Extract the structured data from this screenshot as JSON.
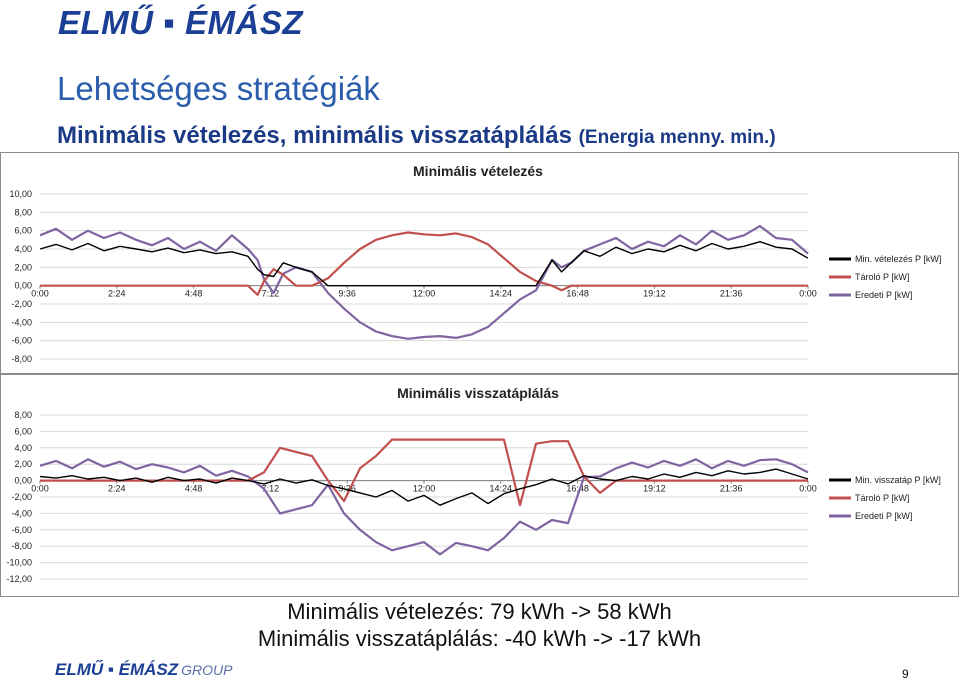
{
  "header": {
    "logo_text": "ELMŰ ▪ ÉMÁSZ",
    "title": "Lehetséges stratégiák",
    "subtitle_main": "Minimális vételezés, minimális visszatáplálás",
    "subtitle_note": "(Energia menny. min.)"
  },
  "colors": {
    "title": "#2a5dab",
    "black_series": "#000000",
    "red_series": "#c0504d",
    "purple_series": "#8064a2"
  },
  "chart_data": [
    {
      "type": "line",
      "title": "Minimális vételezés",
      "x_ticks": [
        "0:00",
        "2:24",
        "4:48",
        "7:12",
        "9:36",
        "12:00",
        "14:24",
        "16:48",
        "19:12",
        "21:36",
        "0:00"
      ],
      "y_ticks": [
        "10,00",
        "8,00",
        "6,00",
        "4,00",
        "2,00",
        "0,00",
        "-2,00",
        "-4,00",
        "-6,00",
        "-8,00"
      ],
      "ylim": [
        -8,
        10
      ],
      "grid": true,
      "legend_position": "right",
      "series": [
        {
          "name": "Min. vételezés P [kW]",
          "color": "#000000",
          "x": [
            0,
            0.5,
            1,
            1.5,
            2,
            2.5,
            3,
            3.5,
            4,
            4.5,
            5,
            5.5,
            6,
            6.5,
            6.8,
            7,
            7.3,
            7.6,
            8,
            8.5,
            9,
            9.5,
            10,
            10.5,
            11,
            11.5,
            12,
            12.5,
            13,
            13.5,
            14,
            14.5,
            15,
            15.5,
            16,
            16.3,
            16.6,
            17,
            17.5,
            18,
            18.5,
            19,
            19.5,
            20,
            20.5,
            21,
            21.5,
            22,
            22.5,
            23,
            23.5,
            24
          ],
          "y": [
            4.0,
            4.5,
            3.9,
            4.6,
            3.8,
            4.3,
            4.0,
            3.7,
            4.1,
            3.6,
            3.9,
            3.5,
            3.7,
            3.2,
            1.8,
            1.2,
            1.0,
            2.5,
            2.0,
            1.5,
            0.0,
            0.0,
            0.0,
            0.0,
            0.0,
            0.0,
            0.0,
            0.0,
            0.0,
            0.0,
            0.0,
            0.0,
            0.0,
            0.0,
            2.8,
            1.5,
            2.5,
            3.8,
            3.2,
            4.2,
            3.5,
            4.0,
            3.7,
            4.4,
            3.8,
            4.6,
            4.0,
            4.3,
            4.8,
            4.2,
            4.0,
            3.0
          ]
        },
        {
          "name": "Tároló P [kW]",
          "color": "#c0504d",
          "x": [
            0,
            6.5,
            6.8,
            7,
            7.3,
            7.6,
            8,
            8.5,
            9,
            9.5,
            10,
            10.5,
            11,
            11.5,
            12,
            12.5,
            13,
            13.5,
            14,
            14.5,
            15,
            15.5,
            16,
            16.3,
            16.6,
            17,
            24
          ],
          "y": [
            0,
            0,
            -1.0,
            0.5,
            1.8,
            1.2,
            0,
            0,
            0.8,
            2.5,
            4.0,
            5.0,
            5.5,
            5.8,
            5.6,
            5.5,
            5.7,
            5.3,
            4.5,
            3.0,
            1.5,
            0.5,
            0,
            -0.5,
            0,
            0,
            0
          ]
        },
        {
          "name": "Eredeti P [kW]",
          "color": "#8064a2",
          "x": [
            0,
            0.5,
            1,
            1.5,
            2,
            2.5,
            3,
            3.5,
            4,
            4.5,
            5,
            5.5,
            6,
            6.5,
            6.8,
            7,
            7.3,
            7.6,
            8,
            8.5,
            9,
            9.5,
            10,
            10.5,
            11,
            11.5,
            12,
            12.5,
            13,
            13.5,
            14,
            14.5,
            15,
            15.5,
            16,
            16.3,
            16.6,
            17,
            17.5,
            18,
            18.5,
            19,
            19.5,
            20,
            20.5,
            21,
            21.5,
            22,
            22.5,
            23,
            23.5,
            24
          ],
          "y": [
            5.5,
            6.2,
            5.0,
            6.0,
            5.2,
            5.8,
            5.0,
            4.4,
            5.2,
            4.0,
            4.8,
            3.8,
            5.5,
            4.0,
            2.8,
            0.7,
            -0.8,
            1.3,
            2.0,
            1.5,
            -0.8,
            -2.5,
            -4.0,
            -5.0,
            -5.5,
            -5.8,
            -5.6,
            -5.5,
            -5.7,
            -5.3,
            -4.5,
            -3.0,
            -1.5,
            -0.5,
            2.8,
            2.0,
            2.5,
            3.8,
            4.5,
            5.2,
            4.0,
            4.8,
            4.3,
            5.5,
            4.5,
            6.0,
            5.0,
            5.5,
            6.5,
            5.2,
            5.0,
            3.5
          ]
        }
      ]
    },
    {
      "type": "line",
      "title": "Minimális visszatáplálás",
      "x_ticks": [
        "0:00",
        "2:24",
        "4:48",
        "7:12",
        "9:36",
        "12:00",
        "14:24",
        "16:48",
        "19:12",
        "21:36",
        "0:00"
      ],
      "y_ticks": [
        "8,00",
        "6,00",
        "4,00",
        "2,00",
        "0,00",
        "-2,00",
        "-4,00",
        "-6,00",
        "-8,00",
        "-10,00",
        "-12,00"
      ],
      "ylim": [
        -12,
        8
      ],
      "grid": true,
      "legend_position": "right",
      "series": [
        {
          "name": "Min. visszatáp P [kW]",
          "color": "#000000",
          "x": [
            0,
            0.5,
            1,
            1.5,
            2,
            2.5,
            3,
            3.5,
            4,
            4.5,
            5,
            5.5,
            6,
            6.5,
            7,
            7.5,
            8,
            8.5,
            9,
            9.5,
            10,
            10.5,
            11,
            11.5,
            12,
            12.5,
            13,
            13.5,
            14,
            14.5,
            15,
            15.5,
            16,
            16.5,
            17,
            17.5,
            18,
            18.5,
            19,
            19.5,
            20,
            20.5,
            21,
            21.5,
            22,
            22.5,
            23,
            23.5,
            24
          ],
          "y": [
            0.5,
            0.3,
            0.6,
            0.2,
            0.4,
            0.0,
            0.3,
            -0.2,
            0.4,
            0.0,
            0.2,
            -0.3,
            0.3,
            0.0,
            -0.4,
            0.2,
            -0.3,
            0.1,
            -0.6,
            -1.0,
            -1.5,
            -2.0,
            -1.2,
            -2.5,
            -1.8,
            -3.0,
            -2.2,
            -1.5,
            -2.8,
            -1.6,
            -1.0,
            -0.5,
            0.2,
            -0.4,
            0.6,
            0.2,
            0.0,
            0.5,
            0.2,
            0.8,
            0.4,
            1.0,
            0.6,
            1.2,
            0.8,
            1.0,
            1.4,
            0.8,
            0.2
          ]
        },
        {
          "name": "Tároló P [kW]",
          "color": "#c0504d",
          "x": [
            0,
            6.5,
            7,
            7.5,
            8,
            8.5,
            9,
            9.5,
            10,
            10.5,
            11,
            11.5,
            12,
            12.5,
            13,
            13.5,
            14,
            14.5,
            15,
            15.5,
            16,
            16.5,
            17,
            17.5,
            18,
            24
          ],
          "y": [
            0,
            0,
            1.0,
            4.0,
            3.5,
            3.0,
            0.0,
            -2.5,
            1.5,
            3.0,
            5.0,
            5.0,
            5.0,
            5.0,
            5.0,
            5.0,
            5.0,
            5.0,
            -3.0,
            4.5,
            4.8,
            4.8,
            0.5,
            -1.5,
            0,
            0
          ]
        },
        {
          "name": "Eredeti P [kW]",
          "color": "#8064a2",
          "x": [
            0,
            0.5,
            1,
            1.5,
            2,
            2.5,
            3,
            3.5,
            4,
            4.5,
            5,
            5.5,
            6,
            6.5,
            7,
            7.5,
            8,
            8.5,
            9,
            9.5,
            10,
            10.5,
            11,
            11.5,
            12,
            12.5,
            13,
            13.5,
            14,
            14.5,
            15,
            15.5,
            16,
            16.5,
            17,
            17.5,
            18,
            18.5,
            19,
            19.5,
            20,
            20.5,
            21,
            21.5,
            22,
            22.5,
            23,
            23.5,
            24
          ],
          "y": [
            1.8,
            2.4,
            1.5,
            2.6,
            1.7,
            2.3,
            1.4,
            2.0,
            1.6,
            1.0,
            1.8,
            0.6,
            1.2,
            0.5,
            -1.0,
            -4.0,
            -3.5,
            -3.0,
            -0.5,
            -4.0,
            -6.0,
            -7.5,
            -8.5,
            -8.0,
            -7.5,
            -9.0,
            -7.6,
            -8.0,
            -8.5,
            -7.0,
            -5.0,
            -6.0,
            -4.8,
            -5.2,
            0.4,
            0.5,
            1.5,
            2.2,
            1.6,
            2.4,
            1.8,
            2.6,
            1.5,
            2.4,
            1.8,
            2.5,
            2.6,
            2.0,
            1.0
          ]
        }
      ]
    }
  ],
  "summary": {
    "line1": "Minimális vételezés: 79 kWh -> 58 kWh",
    "line2": "Minimális visszatáplálás: -40 kWh -> -17 kWh"
  },
  "footer": {
    "logo_text": "ELMŰ ▪ ÉMÁSZ",
    "group_text": "GROUP",
    "page_number": "9"
  }
}
